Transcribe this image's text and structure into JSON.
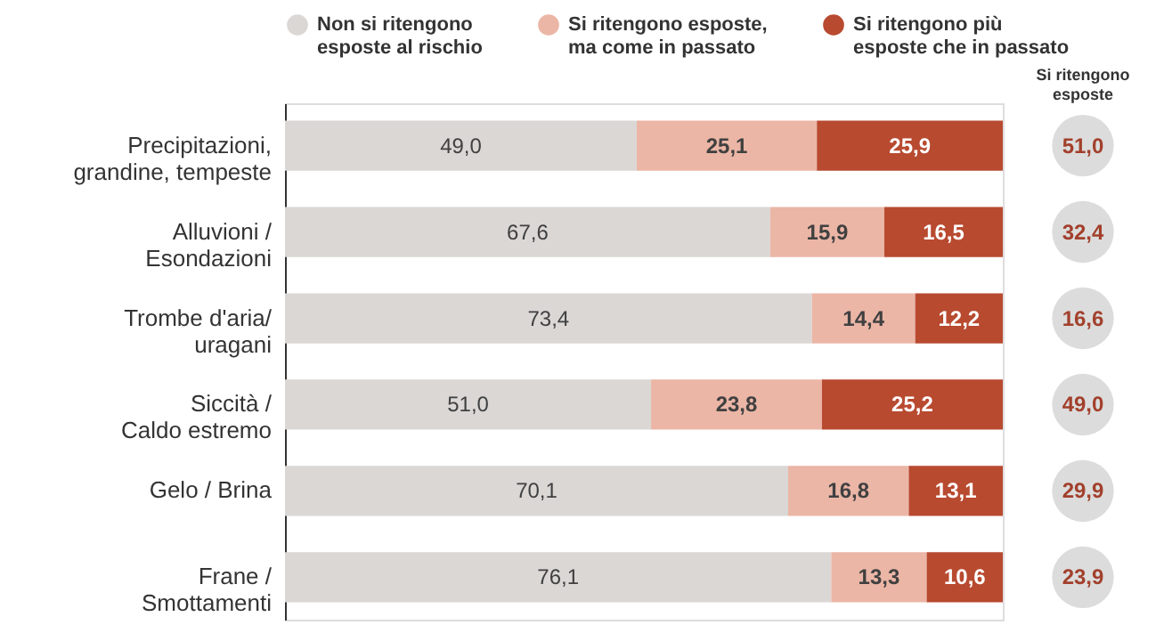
{
  "chart_data": {
    "type": "bar",
    "orientation": "horizontal",
    "stacked": true,
    "categories": [
      "Precipitazioni, grandine, tempeste",
      "Alluvioni / Esondazioni",
      "Trombe d'aria/ uragani",
      "Siccità / Caldo estremo",
      "Gelo / Brina",
      "Frane / Smottamenti"
    ],
    "series": [
      {
        "name": "Non si ritengono esposte al rischio",
        "color": "#dad7d5",
        "values": [
          49.0,
          67.6,
          73.4,
          51.0,
          70.1,
          76.1
        ],
        "value_labels": [
          "49,0",
          "67,6",
          "73,4",
          "51,0",
          "70,1",
          "76,1"
        ]
      },
      {
        "name": "Si ritengono esposte, ma come in passato",
        "color": "#ebb6a6",
        "values": [
          25.1,
          15.9,
          14.4,
          23.8,
          16.8,
          13.3
        ],
        "value_labels": [
          "25,1",
          "15,9",
          "14,4",
          "23,8",
          "16,8",
          "13,3"
        ]
      },
      {
        "name": "Si ritengono più esposte che in passato",
        "color": "#b84a30",
        "values": [
          25.9,
          16.5,
          12.2,
          25.2,
          13.1,
          10.6
        ],
        "value_labels": [
          "25,9",
          "16,5",
          "12,2",
          "25,2",
          "13,1",
          "10,6"
        ]
      }
    ],
    "annotations": [
      "Si ritengono esposte",
      "51,0",
      "32,4",
      "16,6",
      "49,0",
      "29,9",
      "23,9"
    ],
    "legend": "top",
    "grid": false
  }
}
